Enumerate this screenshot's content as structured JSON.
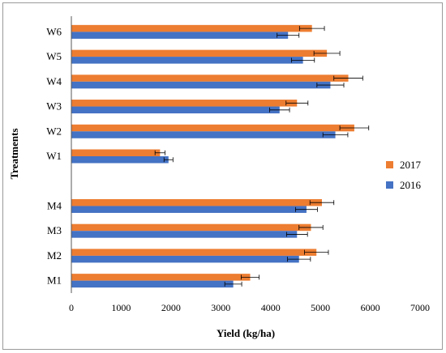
{
  "chart_data": {
    "type": "bar",
    "orientation": "horizontal",
    "xlabel": "Yield (kg/ha)",
    "ylabel": "Treatments",
    "xlim": [
      0,
      7000
    ],
    "xticks": [
      "0",
      "1000",
      "2000",
      "3000",
      "4000",
      "5000",
      "6000",
      "7000"
    ],
    "grid": false,
    "legend_position": "right",
    "categories": [
      "M1",
      "M2",
      "M3",
      "M4",
      "",
      "W1",
      "W2",
      "W3",
      "W4",
      "W5",
      "W6"
    ],
    "series": [
      {
        "name": "2016",
        "color": "#4472C4",
        "values": [
          3250,
          4570,
          4530,
          4720,
          null,
          1950,
          5300,
          4180,
          5200,
          4650,
          4350
        ],
        "errors": [
          170,
          230,
          210,
          220,
          null,
          90,
          250,
          200,
          270,
          230,
          220
        ]
      },
      {
        "name": "2017",
        "color": "#ED7D31",
        "values": [
          3590,
          4920,
          4810,
          5030,
          null,
          1780,
          5680,
          4530,
          5560,
          5130,
          4830
        ],
        "errors": [
          180,
          240,
          240,
          240,
          null,
          100,
          290,
          220,
          290,
          260,
          250
        ]
      }
    ]
  }
}
